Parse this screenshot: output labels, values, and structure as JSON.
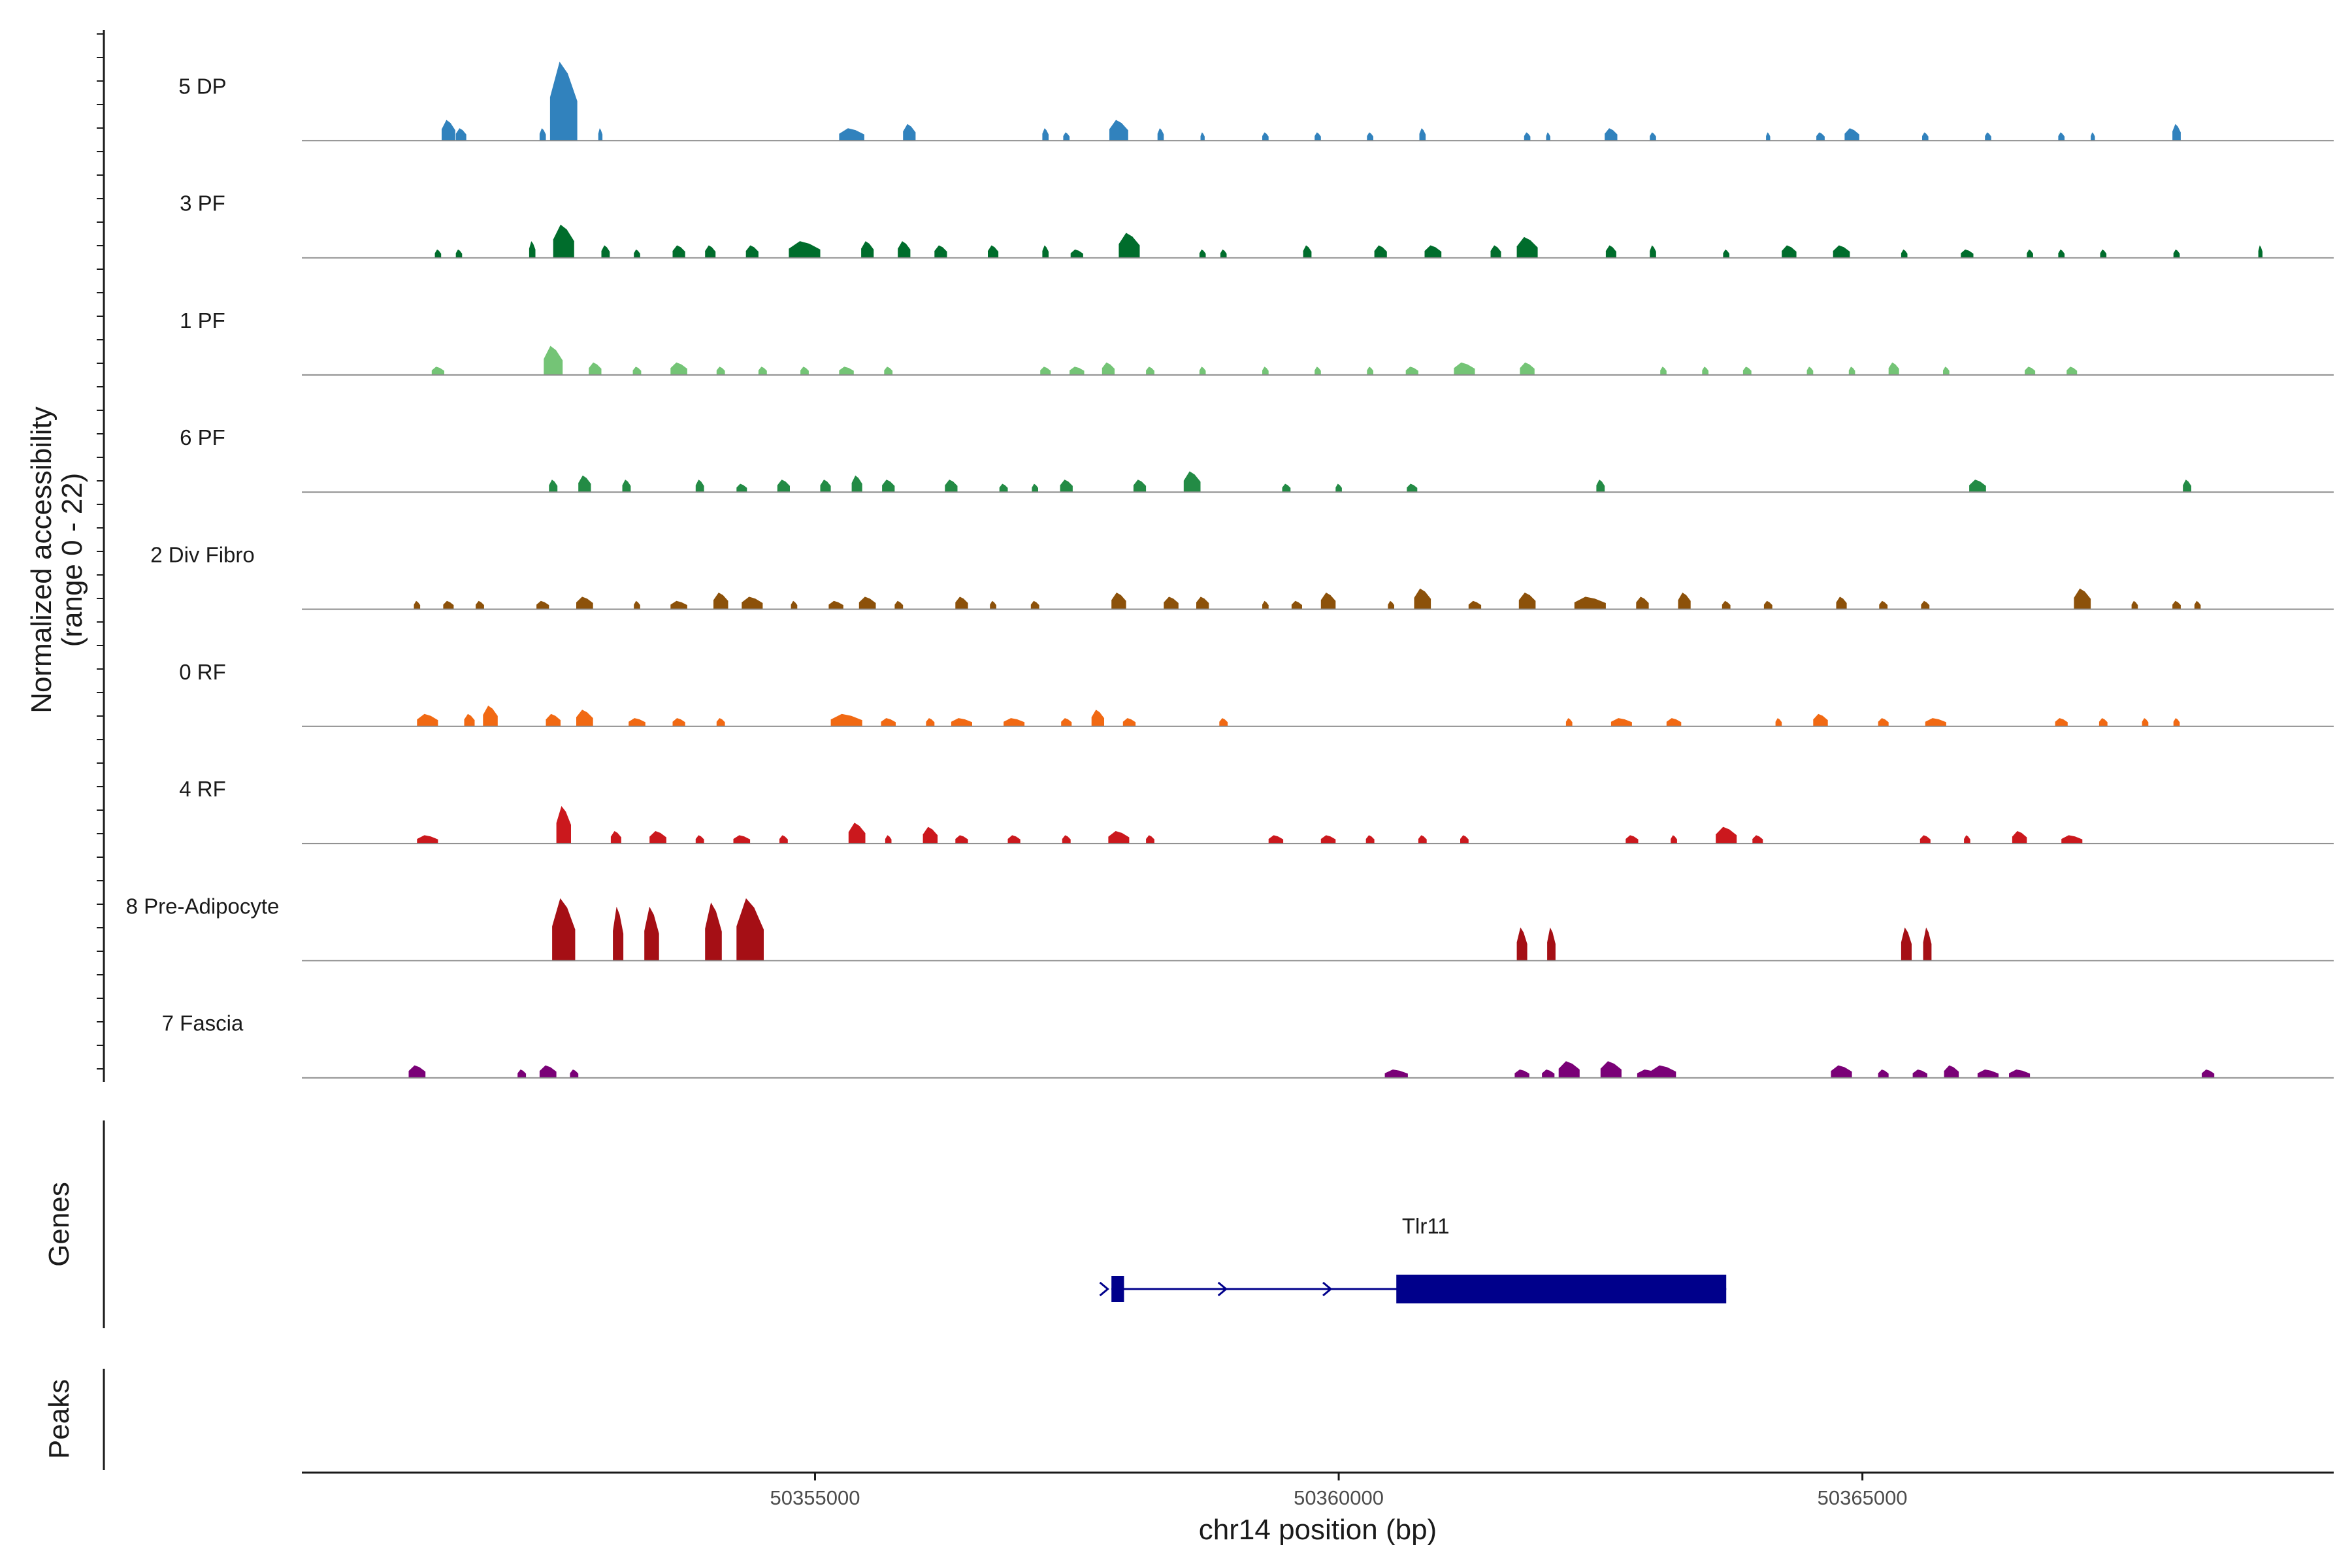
{
  "chart_data": {
    "type": "area",
    "title": "",
    "ylabel_line1": "Normalized accessibility",
    "ylabel_line2": "(range 0 - 22)",
    "ylim": [
      0,
      22
    ],
    "xlabel": "chr14 position (bp)",
    "xlim": [
      50350100,
      50369500
    ],
    "x_ticks": [
      50355000,
      50360000,
      50365000
    ],
    "x_tick_labels": [
      "50355000",
      "50360000",
      "50365000"
    ],
    "genes_label": "Genes",
    "peaks_label": "Peaks",
    "series": [
      {
        "name": "5 DP",
        "color": "#3182bd",
        "peaks": [
          [
            50351500,
            130,
            5
          ],
          [
            50351620,
            100,
            3
          ],
          [
            50352600,
            260,
            19
          ],
          [
            50352400,
            60,
            3
          ],
          [
            50352950,
            40,
            3
          ],
          [
            50355350,
            240,
            3
          ],
          [
            50355900,
            120,
            4
          ],
          [
            50357200,
            60,
            3
          ],
          [
            50357400,
            60,
            2
          ],
          [
            50357900,
            180,
            5
          ],
          [
            50358300,
            60,
            3
          ],
          [
            50358700,
            40,
            2
          ],
          [
            50359300,
            60,
            2
          ],
          [
            50359800,
            60,
            2
          ],
          [
            50360300,
            60,
            2
          ],
          [
            50360800,
            60,
            3
          ],
          [
            50361800,
            60,
            2
          ],
          [
            50362000,
            40,
            2
          ],
          [
            50362600,
            120,
            3
          ],
          [
            50363000,
            60,
            2
          ],
          [
            50364100,
            40,
            2
          ],
          [
            50364600,
            80,
            2
          ],
          [
            50364900,
            140,
            3
          ],
          [
            50365600,
            60,
            2
          ],
          [
            50366200,
            60,
            2
          ],
          [
            50366900,
            60,
            2
          ],
          [
            50367200,
            40,
            2
          ],
          [
            50368000,
            80,
            4
          ]
        ]
      },
      {
        "name": "3 PF",
        "color": "#006d2c",
        "peaks": [
          [
            50351400,
            60,
            2
          ],
          [
            50351600,
            60,
            2
          ],
          [
            50352300,
            60,
            4
          ],
          [
            50352600,
            200,
            8
          ],
          [
            50353000,
            80,
            3
          ],
          [
            50353300,
            60,
            2
          ],
          [
            50353700,
            120,
            3
          ],
          [
            50354000,
            100,
            3
          ],
          [
            50354400,
            120,
            3
          ],
          [
            50354900,
            300,
            4
          ],
          [
            50355500,
            120,
            4
          ],
          [
            50355850,
            120,
            4
          ],
          [
            50356200,
            120,
            3
          ],
          [
            50356700,
            100,
            3
          ],
          [
            50357200,
            60,
            3
          ],
          [
            50357500,
            120,
            2
          ],
          [
            50358000,
            200,
            6
          ],
          [
            50358700,
            60,
            2
          ],
          [
            50358900,
            60,
            2
          ],
          [
            50359700,
            80,
            3
          ],
          [
            50360400,
            120,
            3
          ],
          [
            50360900,
            160,
            3
          ],
          [
            50361500,
            100,
            3
          ],
          [
            50361800,
            200,
            5
          ],
          [
            50362600,
            100,
            3
          ],
          [
            50363000,
            60,
            3
          ],
          [
            50363700,
            60,
            2
          ],
          [
            50364300,
            140,
            3
          ],
          [
            50364800,
            160,
            3
          ],
          [
            50365400,
            60,
            2
          ],
          [
            50366000,
            120,
            2
          ],
          [
            50366600,
            60,
            2
          ],
          [
            50366900,
            60,
            2
          ],
          [
            50367300,
            60,
            2
          ],
          [
            50368000,
            60,
            2
          ],
          [
            50368800,
            40,
            3
          ]
        ]
      },
      {
        "name": "1 PF",
        "color": "#74c476",
        "peaks": [
          [
            50351400,
            120,
            2
          ],
          [
            50352500,
            180,
            7
          ],
          [
            50352900,
            120,
            3
          ],
          [
            50353300,
            80,
            2
          ],
          [
            50353700,
            160,
            3
          ],
          [
            50354100,
            80,
            2
          ],
          [
            50354500,
            80,
            2
          ],
          [
            50354900,
            80,
            2
          ],
          [
            50355300,
            140,
            2
          ],
          [
            50355700,
            80,
            2
          ],
          [
            50357200,
            100,
            2
          ],
          [
            50357500,
            140,
            2
          ],
          [
            50357800,
            120,
            3
          ],
          [
            50358200,
            80,
            2
          ],
          [
            50358700,
            60,
            2
          ],
          [
            50359300,
            60,
            2
          ],
          [
            50359800,
            60,
            2
          ],
          [
            50360300,
            60,
            2
          ],
          [
            50360700,
            120,
            2
          ],
          [
            50361200,
            200,
            3
          ],
          [
            50361800,
            140,
            3
          ],
          [
            50363100,
            60,
            2
          ],
          [
            50363500,
            60,
            2
          ],
          [
            50363900,
            80,
            2
          ],
          [
            50364500,
            60,
            2
          ],
          [
            50364900,
            60,
            2
          ],
          [
            50365300,
            100,
            3
          ],
          [
            50365800,
            60,
            2
          ],
          [
            50366600,
            100,
            2
          ],
          [
            50367000,
            100,
            2
          ]
        ]
      },
      {
        "name": "6 PF",
        "color": "#238b45",
        "peaks": [
          [
            50352500,
            80,
            3
          ],
          [
            50352800,
            120,
            4
          ],
          [
            50353200,
            80,
            3
          ],
          [
            50353900,
            80,
            3
          ],
          [
            50354300,
            100,
            2
          ],
          [
            50354700,
            120,
            3
          ],
          [
            50355100,
            100,
            3
          ],
          [
            50355400,
            100,
            4
          ],
          [
            50355700,
            120,
            3
          ],
          [
            50356300,
            120,
            3
          ],
          [
            50356800,
            80,
            2
          ],
          [
            50357100,
            60,
            2
          ],
          [
            50357400,
            120,
            3
          ],
          [
            50358100,
            120,
            3
          ],
          [
            50358600,
            160,
            5
          ],
          [
            50359500,
            80,
            2
          ],
          [
            50360000,
            60,
            2
          ],
          [
            50360700,
            100,
            2
          ],
          [
            50362500,
            80,
            3
          ],
          [
            50366100,
            160,
            3
          ],
          [
            50368100,
            80,
            3
          ]
        ]
      },
      {
        "name": "2 Div Fibro",
        "color": "#8c510a",
        "peaks": [
          [
            50351200,
            60,
            2
          ],
          [
            50351500,
            100,
            2
          ],
          [
            50351800,
            80,
            2
          ],
          [
            50352400,
            120,
            2
          ],
          [
            50352800,
            160,
            3
          ],
          [
            50353300,
            60,
            2
          ],
          [
            50353700,
            160,
            2
          ],
          [
            50354100,
            140,
            4
          ],
          [
            50354400,
            200,
            3
          ],
          [
            50354800,
            60,
            2
          ],
          [
            50355200,
            140,
            2
          ],
          [
            50355500,
            160,
            3
          ],
          [
            50355800,
            80,
            2
          ],
          [
            50356400,
            120,
            3
          ],
          [
            50356700,
            60,
            2
          ],
          [
            50357100,
            80,
            2
          ],
          [
            50357900,
            140,
            4
          ],
          [
            50358400,
            140,
            3
          ],
          [
            50358700,
            120,
            3
          ],
          [
            50359300,
            60,
            2
          ],
          [
            50359600,
            100,
            2
          ],
          [
            50359900,
            140,
            4
          ],
          [
            50360500,
            60,
            2
          ],
          [
            50360800,
            160,
            5
          ],
          [
            50361300,
            120,
            2
          ],
          [
            50361800,
            160,
            4
          ],
          [
            50362400,
            300,
            3
          ],
          [
            50362900,
            120,
            3
          ],
          [
            50363300,
            120,
            4
          ],
          [
            50363700,
            80,
            2
          ],
          [
            50364100,
            80,
            2
          ],
          [
            50364800,
            100,
            3
          ],
          [
            50365200,
            80,
            2
          ],
          [
            50365600,
            80,
            2
          ],
          [
            50367100,
            160,
            5
          ],
          [
            50367600,
            60,
            2
          ],
          [
            50368000,
            80,
            2
          ],
          [
            50368200,
            60,
            2
          ]
        ]
      },
      {
        "name": "0 RF",
        "color": "#f16913",
        "peaks": [
          [
            50351300,
            200,
            3
          ],
          [
            50351700,
            100,
            3
          ],
          [
            50351900,
            140,
            5
          ],
          [
            50352500,
            140,
            3
          ],
          [
            50352800,
            160,
            4
          ],
          [
            50353300,
            160,
            2
          ],
          [
            50353700,
            120,
            2
          ],
          [
            50354100,
            80,
            2
          ],
          [
            50355300,
            300,
            3
          ],
          [
            50355700,
            140,
            2
          ],
          [
            50356100,
            80,
            2
          ],
          [
            50356400,
            200,
            2
          ],
          [
            50356900,
            200,
            2
          ],
          [
            50357400,
            100,
            2
          ],
          [
            50357700,
            120,
            4
          ],
          [
            50358000,
            120,
            2
          ],
          [
            50358900,
            80,
            2
          ],
          [
            50362200,
            60,
            2
          ],
          [
            50362700,
            200,
            2
          ],
          [
            50363200,
            140,
            2
          ],
          [
            50364200,
            60,
            2
          ],
          [
            50364600,
            140,
            3
          ],
          [
            50365200,
            100,
            2
          ],
          [
            50365700,
            200,
            2
          ],
          [
            50366900,
            120,
            2
          ],
          [
            50367300,
            80,
            2
          ],
          [
            50367700,
            60,
            2
          ],
          [
            50368000,
            60,
            2
          ]
        ]
      },
      {
        "name": "4 RF",
        "color": "#cb181d",
        "peaks": [
          [
            50351300,
            200,
            2
          ],
          [
            50352600,
            140,
            9
          ],
          [
            50353100,
            100,
            3
          ],
          [
            50353500,
            160,
            3
          ],
          [
            50353900,
            80,
            2
          ],
          [
            50354300,
            160,
            2
          ],
          [
            50354700,
            80,
            2
          ],
          [
            50355400,
            160,
            5
          ],
          [
            50355700,
            60,
            2
          ],
          [
            50356100,
            140,
            4
          ],
          [
            50356400,
            120,
            2
          ],
          [
            50356900,
            120,
            2
          ],
          [
            50357400,
            80,
            2
          ],
          [
            50357900,
            200,
            3
          ],
          [
            50358200,
            80,
            2
          ],
          [
            50359400,
            140,
            2
          ],
          [
            50359900,
            140,
            2
          ],
          [
            50360300,
            80,
            2
          ],
          [
            50360800,
            80,
            2
          ],
          [
            50361200,
            80,
            2
          ],
          [
            50362800,
            120,
            2
          ],
          [
            50363200,
            60,
            2
          ],
          [
            50363700,
            200,
            4
          ],
          [
            50364000,
            100,
            2
          ],
          [
            50365600,
            100,
            2
          ],
          [
            50366000,
            60,
            2
          ],
          [
            50366500,
            140,
            3
          ],
          [
            50367000,
            200,
            2
          ]
        ]
      },
      {
        "name": "8 Pre-Adipocyte",
        "color": "#a50f15",
        "peaks": [
          [
            50352600,
            220,
            15
          ],
          [
            50353120,
            100,
            13
          ],
          [
            50353440,
            140,
            13
          ],
          [
            50354030,
            160,
            14
          ],
          [
            50354380,
            260,
            15
          ],
          [
            50361750,
            100,
            8
          ],
          [
            50362030,
            80,
            8
          ],
          [
            50365420,
            100,
            8
          ],
          [
            50365620,
            80,
            8
          ]
        ]
      },
      {
        "name": "7 Fascia",
        "color": "#7a0177",
        "peaks": [
          [
            50351200,
            160,
            3
          ],
          [
            50352200,
            80,
            2
          ],
          [
            50352450,
            160,
            3
          ],
          [
            50352700,
            80,
            2
          ],
          [
            50360550,
            220,
            2
          ],
          [
            50361750,
            140,
            2
          ],
          [
            50362000,
            120,
            2
          ],
          [
            50362200,
            200,
            4
          ],
          [
            50362600,
            200,
            4
          ],
          [
            50362950,
            200,
            2
          ],
          [
            50363100,
            240,
            3
          ],
          [
            50364800,
            200,
            3
          ],
          [
            50365200,
            100,
            2
          ],
          [
            50365550,
            140,
            2
          ],
          [
            50365850,
            140,
            3
          ],
          [
            50366200,
            200,
            2
          ],
          [
            50366500,
            200,
            2
          ],
          [
            50368300,
            120,
            2
          ]
        ]
      }
    ],
    "gene": {
      "name": "Tlr11",
      "color": "#00008b",
      "strand": "+",
      "start": 50357830,
      "end": 50363700,
      "exons": [
        [
          50357830,
          50357950
        ],
        [
          50360550,
          50363700
        ]
      ]
    }
  }
}
